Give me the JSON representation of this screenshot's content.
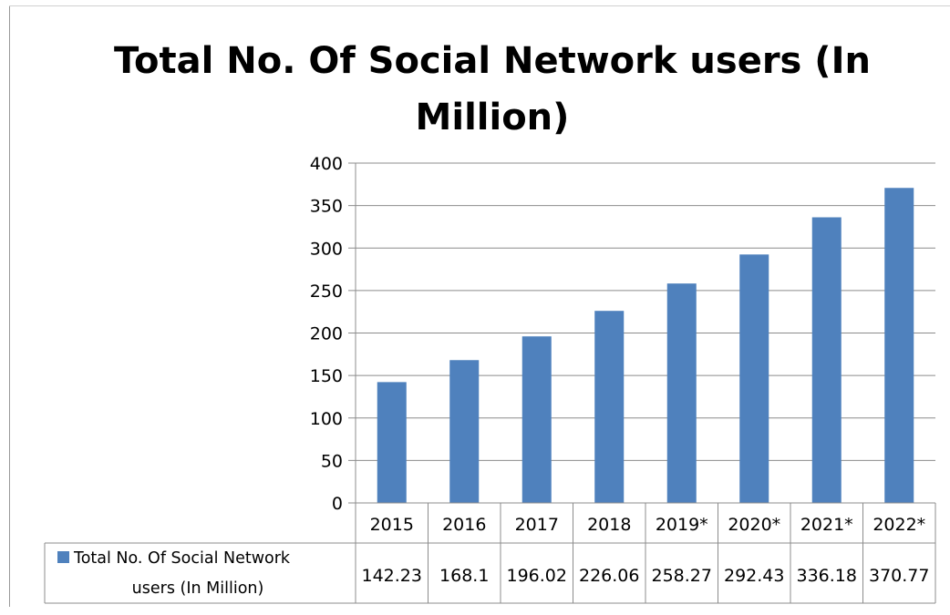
{
  "chart_data": {
    "type": "bar",
    "title": "Total No. Of Social Network users (In Million)",
    "categories": [
      "2015",
      "2016",
      "2017",
      "2018",
      "2019*",
      "2020*",
      "2021*",
      "2022*"
    ],
    "series": [
      {
        "name": "Total No. Of Social Network users (In Million)",
        "values": [
          142.23,
          168.1,
          196.02,
          226.06,
          258.27,
          292.43,
          336.18,
          370.77
        ],
        "display_values": [
          "142.23",
          "168.1",
          "196.02",
          "226.06",
          "258.27",
          "292.43",
          "336.18",
          "370.77"
        ],
        "color": "#4f81bd"
      }
    ],
    "ylim": [
      0,
      400
    ],
    "yticks": [
      0,
      50,
      100,
      150,
      200,
      250,
      300,
      350,
      400
    ],
    "grid": true,
    "legend_placement": "data-table",
    "data_table": true
  }
}
